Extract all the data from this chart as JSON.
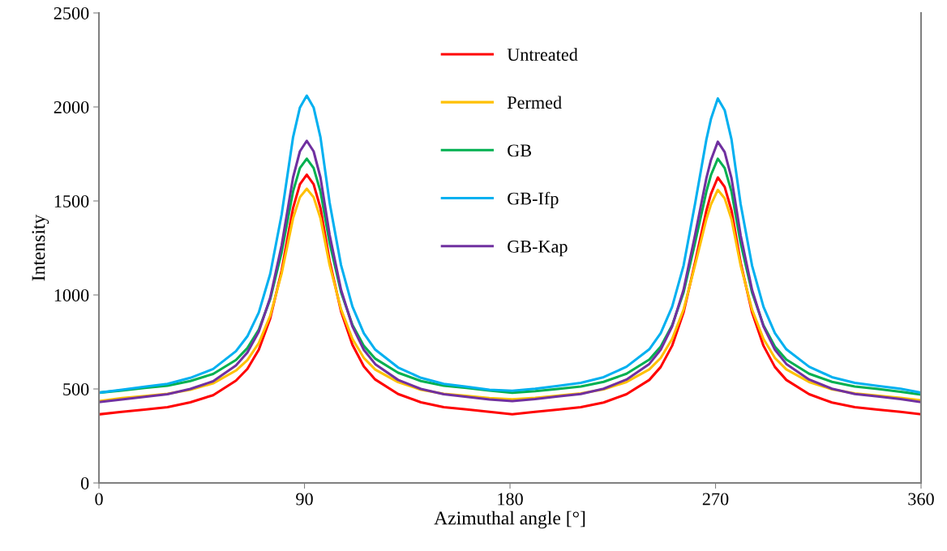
{
  "chart_data": {
    "type": "line",
    "xlabel": "Azimuthal angle [°]",
    "ylabel": "Intensity",
    "x": [
      0,
      10,
      20,
      30,
      40,
      50,
      60,
      65,
      70,
      75,
      80,
      85,
      88,
      91,
      94,
      97,
      101,
      106,
      111,
      116,
      121,
      131,
      141,
      151,
      161,
      171,
      181,
      191,
      201,
      211,
      221,
      231,
      241,
      246,
      251,
      256,
      261,
      266,
      268,
      271,
      274,
      277,
      281,
      286,
      291,
      296,
      301,
      311,
      321,
      331,
      341,
      351,
      360
    ],
    "series": [
      {
        "name": "Untreated",
        "color": "#ff0000",
        "values": [
          365,
          378,
          390,
          403,
          429,
          467,
          544,
          607,
          709,
          875,
          1130,
          1462,
          1589,
          1640,
          1589,
          1462,
          1181,
          913,
          735,
          620,
          550,
          473,
          429,
          403,
          391,
          378,
          365,
          378,
          390,
          403,
          428,
          472,
          548,
          617,
          730,
          907,
          1171,
          1449,
          1537,
          1625,
          1575,
          1449,
          1171,
          907,
          730,
          617,
          548,
          472,
          428,
          403,
          390,
          378,
          365
        ]
      },
      {
        "name": "Permed",
        "color": "#ffc000",
        "values": [
          435,
          451,
          462,
          474,
          496,
          530,
          598,
          654,
          744,
          890,
          1115,
          1408,
          1520,
          1565,
          1520,
          1408,
          1160,
          924,
          766,
          665,
          603,
          536,
          496,
          474,
          463,
          451,
          445,
          453,
          464,
          476,
          498,
          537,
          604,
          665,
          766,
          922,
          1157,
          1403,
          1481,
          1559,
          1514,
          1403,
          1157,
          922,
          766,
          665,
          604,
          537,
          498,
          476,
          464,
          453,
          440
        ]
      },
      {
        "name": "GB",
        "color": "#00b050",
        "values": [
          480,
          492,
          505,
          517,
          542,
          580,
          654,
          717,
          816,
          978,
          1227,
          1551,
          1675,
          1725,
          1675,
          1551,
          1277,
          1015,
          841,
          729,
          661,
          586,
          542,
          517,
          505,
          492,
          480,
          488,
          500,
          513,
          538,
          581,
          656,
          725,
          838,
          1013,
          1275,
          1550,
          1638,
          1725,
          1675,
          1550,
          1275,
          1013,
          838,
          725,
          656,
          581,
          538,
          513,
          500,
          485,
          470
        ]
      },
      {
        "name": "GB-Ifp",
        "color": "#00b0f0",
        "values": [
          480,
          496,
          512,
          527,
          559,
          606,
          701,
          780,
          907,
          1112,
          1428,
          1839,
          1997,
          2060,
          1997,
          1839,
          1491,
          1159,
          938,
          796,
          709,
          614,
          559,
          527,
          512,
          496,
          490,
          501,
          516,
          532,
          563,
          618,
          711,
          797,
          937,
          1156,
          1483,
          1827,
          1936,
          2045,
          1983,
          1827,
          1483,
          1156,
          937,
          797,
          711,
          618,
          563,
          532,
          516,
          501,
          480
        ]
      },
      {
        "name": "GB-Kap",
        "color": "#7030a0",
        "values": [
          430,
          444,
          458,
          472,
          500,
          541,
          625,
          694,
          805,
          986,
          1264,
          1625,
          1764,
          1820,
          1764,
          1625,
          1320,
          1028,
          833,
          708,
          632,
          548,
          500,
          472,
          458,
          444,
          435,
          446,
          460,
          473,
          501,
          550,
          633,
          709,
          833,
          1027,
          1317,
          1621,
          1718,
          1815,
          1760,
          1621,
          1317,
          1027,
          833,
          709,
          633,
          550,
          501,
          473,
          460,
          446,
          430
        ]
      }
    ],
    "xlim": [
      0,
      360
    ],
    "xticks": [
      0,
      90,
      180,
      270,
      360
    ],
    "ylim": [
      0,
      2500
    ],
    "yticks": [
      0,
      500,
      1000,
      1500,
      2000,
      2500
    ],
    "grid": false,
    "legend": "top",
    "marker": "none",
    "line_style": "solid"
  }
}
